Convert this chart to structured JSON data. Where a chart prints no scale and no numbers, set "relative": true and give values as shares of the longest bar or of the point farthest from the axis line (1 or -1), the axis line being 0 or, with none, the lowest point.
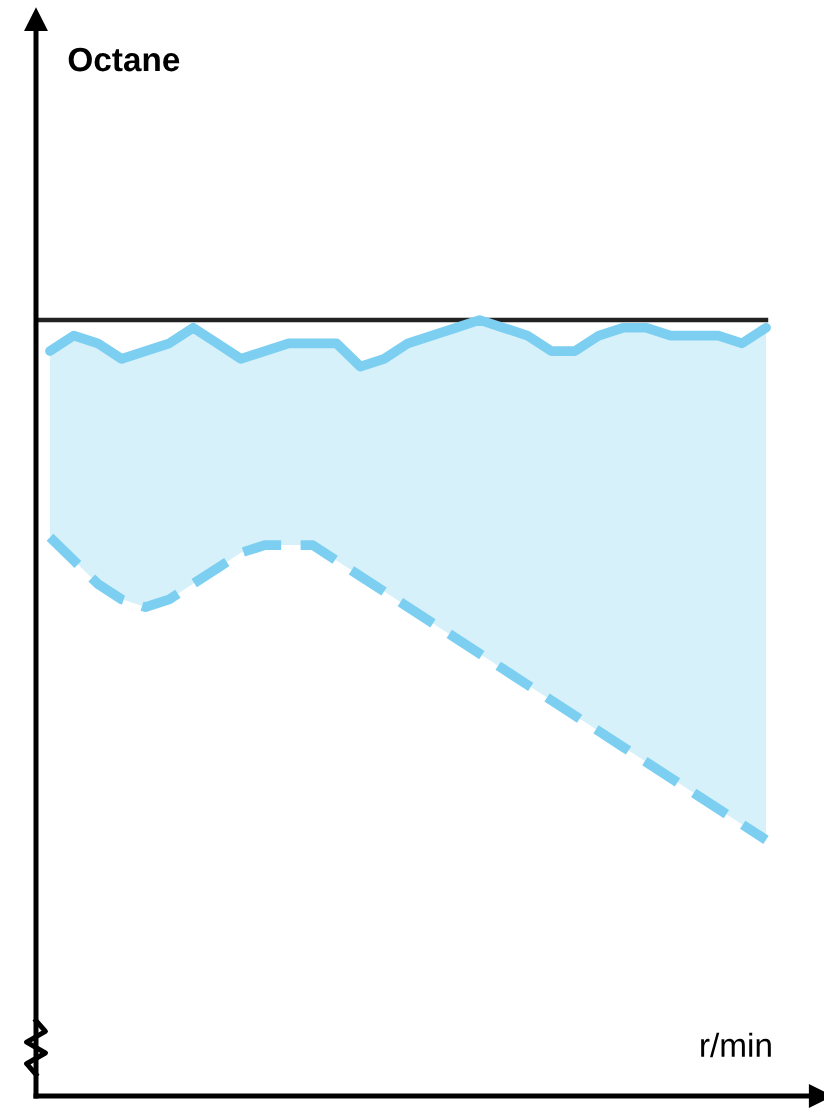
{
  "chart_data": {
    "type": "line",
    "relative": true,
    "xlabel": "r/min",
    "annotations": [
      "Octane"
    ],
    "categories": [
      null,
      null,
      null,
      null,
      null,
      null,
      null,
      null,
      null,
      null,
      null,
      null,
      null,
      null,
      null,
      null,
      null,
      null,
      null,
      null,
      null,
      null,
      null,
      null,
      null,
      null,
      null,
      null,
      null,
      null,
      null
    ],
    "series": [
      {
        "color": "#7ccff0",
        "line_style": "dashed",
        "values": [
          0.72,
          0.69,
          0.66,
          0.64,
          0.63,
          0.64,
          0.66,
          0.68,
          0.7,
          0.71,
          0.71,
          0.71,
          0.69,
          0.67,
          0.65,
          0.63,
          0.61,
          0.59,
          0.57,
          0.55,
          0.53,
          0.51,
          0.49,
          0.47,
          0.45,
          0.43,
          0.41,
          0.39,
          0.37,
          0.35,
          0.33
        ]
      },
      {
        "color": "#7ccff0",
        "line_style": "solid",
        "upper": [
          0.96,
          0.98,
          0.97,
          0.95,
          0.96,
          0.97,
          0.99,
          0.97,
          0.95,
          0.96,
          0.97,
          0.97,
          0.97,
          0.94,
          0.95,
          0.97,
          0.98,
          0.99,
          1.0,
          0.99,
          0.98,
          0.96,
          0.96,
          0.98,
          0.99,
          0.99,
          0.98,
          0.98,
          0.98,
          0.97,
          0.99
        ],
        "values": [
          0.96,
          0.98,
          0.97,
          0.95,
          0.96,
          0.97,
          0.99,
          0.97,
          0.95,
          0.96,
          0.97,
          0.97,
          0.97,
          0.94,
          0.95,
          0.97,
          0.98,
          0.99,
          1.0,
          0.99,
          0.98,
          0.96,
          0.96,
          0.98,
          0.99,
          0.99,
          0.98,
          0.98,
          0.98,
          0.97,
          0.99
        ],
        "lower": [
          0.72,
          0.69,
          0.66,
          0.64,
          0.63,
          0.64,
          0.66,
          0.68,
          0.7,
          0.71,
          0.71,
          0.71,
          0.69,
          0.67,
          0.65,
          0.63,
          0.61,
          0.59,
          0.57,
          0.55,
          0.53,
          0.51,
          0.49,
          0.47,
          0.45,
          0.43,
          0.41,
          0.39,
          0.37,
          0.35,
          0.33
        ]
      }
    ],
    "ref_lines": [
      {
        "axis": "y",
        "value": 1.0,
        "color": "#222222",
        "line_style": "solid"
      }
    ],
    "grid": false
  }
}
